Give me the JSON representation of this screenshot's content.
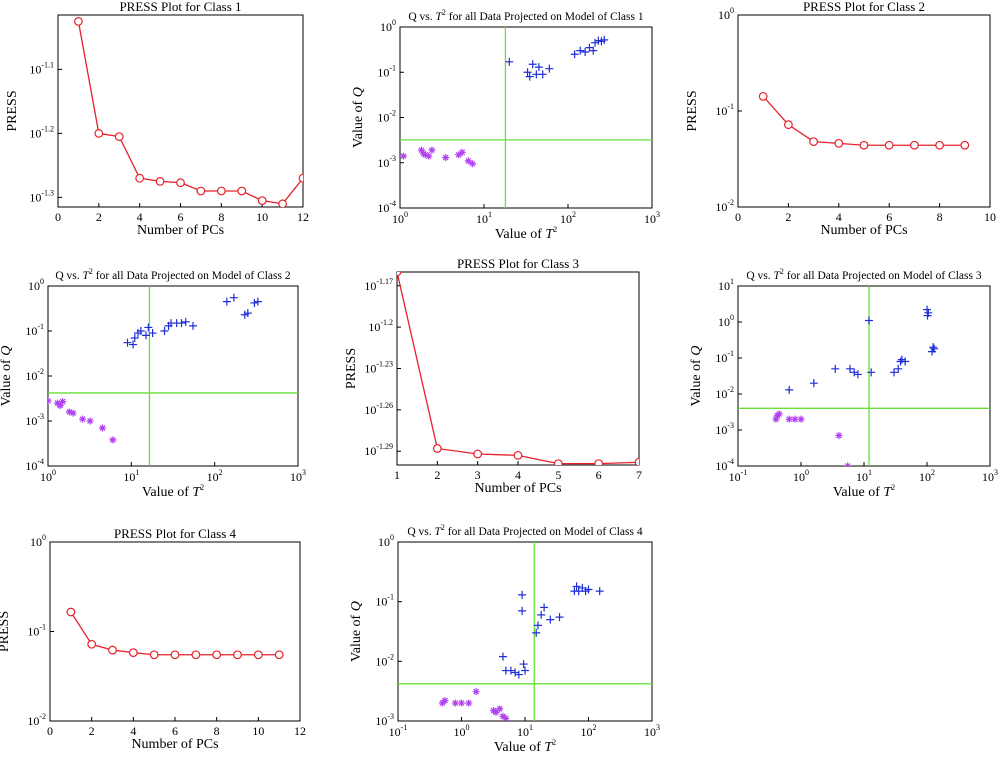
{
  "colors": {
    "press": "#e8202a",
    "class_in": "#b040f0",
    "class_out": "#1f2ed8",
    "limit": "#66e03a"
  },
  "chart_data": [
    {
      "type": "line",
      "title": "PRESS Plot for Class 1",
      "xlabel": "Number of PCs",
      "ylabel": "PRESS",
      "xlim": [
        0,
        12
      ],
      "ylim": [
        -1.315,
        -1.015
      ],
      "yscale": "log-exponent",
      "xticks": [
        "0",
        "2",
        "4",
        "6",
        "8",
        "10",
        "12"
      ],
      "yticks": [
        {
          "base": "10",
          "exp": "-1.1",
          "v": -1.1
        },
        {
          "base": "10",
          "exp": "-1.2",
          "v": -1.2
        },
        {
          "base": "10",
          "exp": "-1.3",
          "v": -1.3
        }
      ],
      "x": [
        1,
        2,
        3,
        4,
        5,
        6,
        7,
        8,
        9,
        10,
        11,
        12
      ],
      "values": [
        -1.025,
        -1.2,
        -1.205,
        -1.27,
        -1.275,
        -1.277,
        -1.29,
        -1.29,
        -1.29,
        -1.305,
        -1.31,
        -1.27
      ]
    },
    {
      "type": "scatter",
      "title": "Q vs. T for all Data Projected on Model of Class 1",
      "title_q": "Q vs.",
      "title_t": "T",
      "title_exp": "2",
      "title_rest": "for all Data Projected on Model of Class 1",
      "xlabel_prefix": "Value of ",
      "xlabel_var": "T",
      "xlabel_exp": "2",
      "ylabel_prefix": "Value of ",
      "ylabel_var": "Q",
      "xscale": "log",
      "yscale": "log",
      "xlim": [
        1,
        1000
      ],
      "ylim": [
        0.0001,
        1
      ],
      "xticks": [
        {
          "base": "10",
          "exp": "0",
          "v": 1
        },
        {
          "base": "10",
          "exp": "1",
          "v": 10
        },
        {
          "base": "10",
          "exp": "2",
          "v": 100
        },
        {
          "base": "10",
          "exp": "3",
          "v": 1000
        }
      ],
      "yticks": [
        {
          "base": "10",
          "exp": "-4",
          "v": 0.0001
        },
        {
          "base": "10",
          "exp": "-3",
          "v": 0.001
        },
        {
          "base": "10",
          "exp": "-2",
          "v": 0.01
        },
        {
          "base": "10",
          "exp": "-1",
          "v": 0.1
        },
        {
          "base": "10",
          "exp": "0",
          "v": 1
        }
      ],
      "t2_limit": 18,
      "q_limit": 0.0032,
      "series": [
        {
          "marker": "star",
          "points": [
            [
              1.1,
              0.0014
            ],
            [
              1.8,
              0.0019
            ],
            [
              1.9,
              0.0016
            ],
            [
              2.0,
              0.0015
            ],
            [
              2.2,
              0.0014
            ],
            [
              2.4,
              0.0019
            ],
            [
              3.5,
              0.0013
            ],
            [
              5.0,
              0.0015
            ],
            [
              5.5,
              0.0017
            ],
            [
              6.5,
              0.0011
            ],
            [
              7.3,
              0.00095
            ]
          ]
        },
        {
          "marker": "plus",
          "points": [
            [
              20,
              0.17
            ],
            [
              33,
              0.1
            ],
            [
              35,
              0.08
            ],
            [
              38,
              0.15
            ],
            [
              42,
              0.09
            ],
            [
              45,
              0.13
            ],
            [
              50,
              0.09
            ],
            [
              60,
              0.12
            ],
            [
              120,
              0.25
            ],
            [
              140,
              0.3
            ],
            [
              160,
              0.28
            ],
            [
              180,
              0.35
            ],
            [
              200,
              0.3
            ],
            [
              210,
              0.45
            ],
            [
              230,
              0.5
            ],
            [
              250,
              0.48
            ],
            [
              270,
              0.52
            ]
          ]
        }
      ]
    },
    {
      "type": "line",
      "title": "PRESS Plot for Class 2",
      "xlabel": "Number of PCs",
      "ylabel": "PRESS",
      "xlim": [
        0,
        10
      ],
      "ylim": [
        0.01,
        1
      ],
      "yscale": "log",
      "xticks": [
        "0",
        "2",
        "4",
        "6",
        "8",
        "10"
      ],
      "yticks": [
        {
          "base": "10",
          "exp": "-2",
          "v": 0.01
        },
        {
          "base": "10",
          "exp": "-1",
          "v": 0.1
        },
        {
          "base": "10",
          "exp": "0",
          "v": 1
        }
      ],
      "x": [
        1,
        2,
        3,
        4,
        5,
        6,
        7,
        8,
        9
      ],
      "values": [
        0.142,
        0.072,
        0.048,
        0.046,
        0.044,
        0.044,
        0.044,
        0.044,
        0.044
      ]
    },
    {
      "type": "scatter",
      "title_q": "Q vs.",
      "title_t": "T",
      "title_exp": "2",
      "title_rest": "for all Data Projected on Model of Class 2",
      "xlabel_prefix": "Value of ",
      "xlabel_var": "T",
      "xlabel_exp": "2",
      "ylabel_prefix": "Value of ",
      "ylabel_var": "Q",
      "xscale": "log",
      "yscale": "log",
      "xlim": [
        1,
        1000
      ],
      "ylim": [
        0.0001,
        1
      ],
      "xticks": [
        {
          "base": "10",
          "exp": "0",
          "v": 1
        },
        {
          "base": "10",
          "exp": "1",
          "v": 10
        },
        {
          "base": "10",
          "exp": "2",
          "v": 100
        },
        {
          "base": "10",
          "exp": "3",
          "v": 1000
        }
      ],
      "yticks": [
        {
          "base": "10",
          "exp": "-4",
          "v": 0.0001
        },
        {
          "base": "10",
          "exp": "-3",
          "v": 0.001
        },
        {
          "base": "10",
          "exp": "-2",
          "v": 0.01
        },
        {
          "base": "10",
          "exp": "-1",
          "v": 0.1
        },
        {
          "base": "10",
          "exp": "0",
          "v": 1
        }
      ],
      "t2_limit": 16.5,
      "q_limit": 0.0042,
      "series": [
        {
          "marker": "star",
          "points": [
            [
              1.0,
              0.0028
            ],
            [
              1.3,
              0.0025
            ],
            [
              1.4,
              0.0022
            ],
            [
              1.5,
              0.0027
            ],
            [
              1.8,
              0.0016
            ],
            [
              2.0,
              0.0015
            ],
            [
              2.6,
              0.0011
            ],
            [
              3.2,
              0.001
            ],
            [
              4.5,
              0.0007
            ],
            [
              6.0,
              0.00038
            ]
          ]
        },
        {
          "marker": "plus",
          "points": [
            [
              9,
              0.055
            ],
            [
              10.5,
              0.05
            ],
            [
              11,
              0.07
            ],
            [
              12,
              0.09
            ],
            [
              13,
              0.1
            ],
            [
              15,
              0.08
            ],
            [
              16,
              0.12
            ],
            [
              18,
              0.09
            ],
            [
              25,
              0.1
            ],
            [
              28,
              0.13
            ],
            [
              30,
              0.15
            ],
            [
              35,
              0.15
            ],
            [
              40,
              0.15
            ],
            [
              45,
              0.16
            ],
            [
              55,
              0.13
            ],
            [
              140,
              0.45
            ],
            [
              170,
              0.55
            ],
            [
              230,
              0.23
            ],
            [
              250,
              0.25
            ],
            [
              300,
              0.42
            ],
            [
              330,
              0.45
            ]
          ]
        }
      ]
    },
    {
      "type": "line",
      "title": "PRESS Plot for Class 3",
      "xlabel": "Number of PCs",
      "ylabel": "PRESS",
      "xlim": [
        1,
        7
      ],
      "ylim": [
        -1.3,
        -1.16
      ],
      "yscale": "log-exponent",
      "xticks": [
        "1",
        "2",
        "3",
        "4",
        "5",
        "6",
        "7"
      ],
      "yticks": [
        {
          "base": "10",
          "exp": "-1.17",
          "v": -1.17
        },
        {
          "base": "10",
          "exp": "-1.2",
          "v": -1.2
        },
        {
          "base": "10",
          "exp": "-1.23",
          "v": -1.23
        },
        {
          "base": "10",
          "exp": "-1.26",
          "v": -1.26
        },
        {
          "base": "10",
          "exp": "-1.29",
          "v": -1.29
        }
      ],
      "x": [
        1,
        2,
        3,
        4,
        5,
        6,
        7
      ],
      "values": [
        -1.16,
        -1.288,
        -1.292,
        -1.293,
        -1.299,
        -1.299,
        -1.298
      ]
    },
    {
      "type": "scatter",
      "title_q": "Q vs.",
      "title_t": "T",
      "title_exp": "2",
      "title_rest": "for all Data Projected on Model of Class 3",
      "xlabel_prefix": "Value of ",
      "xlabel_var": "T",
      "xlabel_exp": "2",
      "ylabel_prefix": "Value of ",
      "ylabel_var": "Q",
      "xscale": "log",
      "yscale": "log",
      "xlim": [
        0.1,
        1000
      ],
      "ylim": [
        0.0001,
        10
      ],
      "xticks": [
        {
          "base": "10",
          "exp": "-1",
          "v": 0.1
        },
        {
          "base": "10",
          "exp": "0",
          "v": 1
        },
        {
          "base": "10",
          "exp": "1",
          "v": 10
        },
        {
          "base": "10",
          "exp": "2",
          "v": 100
        },
        {
          "base": "10",
          "exp": "3",
          "v": 1000
        }
      ],
      "yticks": [
        {
          "base": "10",
          "exp": "-4",
          "v": 0.0001
        },
        {
          "base": "10",
          "exp": "-3",
          "v": 0.001
        },
        {
          "base": "10",
          "exp": "-2",
          "v": 0.01
        },
        {
          "base": "10",
          "exp": "-1",
          "v": 0.1
        },
        {
          "base": "10",
          "exp": "0",
          "v": 1
        },
        {
          "base": "10",
          "exp": "1",
          "v": 10
        }
      ],
      "t2_limit": 12,
      "q_limit": 0.004,
      "series": [
        {
          "marker": "star",
          "points": [
            [
              0.4,
              0.002
            ],
            [
              0.42,
              0.0025
            ],
            [
              0.45,
              0.0028
            ],
            [
              0.65,
              0.002
            ],
            [
              0.8,
              0.002
            ],
            [
              1.0,
              0.002
            ],
            [
              4.0,
              0.0007
            ],
            [
              5.5,
              0.0001
            ]
          ]
        },
        {
          "marker": "plus",
          "points": [
            [
              0.65,
              0.013
            ],
            [
              1.6,
              0.02
            ],
            [
              3.5,
              0.05
            ],
            [
              6,
              0.05
            ],
            [
              7,
              0.04
            ],
            [
              8,
              0.035
            ],
            [
              12,
              1.1
            ],
            [
              13,
              0.04
            ],
            [
              30,
              0.04
            ],
            [
              35,
              0.05
            ],
            [
              38,
              0.08
            ],
            [
              40,
              0.09
            ],
            [
              45,
              0.08
            ],
            [
              100,
              2.2
            ],
            [
              102,
              1.5
            ],
            [
              105,
              1.8
            ],
            [
              120,
              0.15
            ],
            [
              125,
              0.2
            ],
            [
              130,
              0.18
            ]
          ]
        }
      ]
    },
    {
      "type": "line",
      "title": "PRESS Plot for Class 4",
      "xlabel": "Number of PCs",
      "ylabel": "PRESS",
      "xlim": [
        0,
        12
      ],
      "ylim": [
        0.01,
        1
      ],
      "yscale": "log",
      "xticks": [
        "0",
        "2",
        "4",
        "6",
        "8",
        "10",
        "12"
      ],
      "yticks": [
        {
          "base": "10",
          "exp": "-2",
          "v": 0.01
        },
        {
          "base": "10",
          "exp": "-1",
          "v": 0.1
        },
        {
          "base": "10",
          "exp": "0",
          "v": 1
        }
      ],
      "x": [
        1,
        2,
        3,
        4,
        5,
        6,
        7,
        8,
        9,
        10,
        11
      ],
      "values": [
        0.165,
        0.072,
        0.062,
        0.058,
        0.055,
        0.055,
        0.055,
        0.055,
        0.055,
        0.055,
        0.055
      ]
    },
    {
      "type": "scatter",
      "title_q": "Q vs.",
      "title_t": "T",
      "title_exp": "2",
      "title_rest": "for all Data Projected on Model of Class 4",
      "xlabel_prefix": "Value of ",
      "xlabel_var": "T",
      "xlabel_exp": "2",
      "ylabel_prefix": "Value of ",
      "ylabel_var": "Q",
      "xscale": "log",
      "yscale": "log",
      "xlim": [
        0.1,
        1000
      ],
      "ylim": [
        0.001,
        1
      ],
      "xticks": [
        {
          "base": "10",
          "exp": "-1",
          "v": 0.1
        },
        {
          "base": "10",
          "exp": "0",
          "v": 1
        },
        {
          "base": "10",
          "exp": "1",
          "v": 10
        },
        {
          "base": "10",
          "exp": "2",
          "v": 100
        },
        {
          "base": "10",
          "exp": "3",
          "v": 1000
        }
      ],
      "yticks": [
        {
          "base": "10",
          "exp": "-3",
          "v": 0.001
        },
        {
          "base": "10",
          "exp": "-2",
          "v": 0.01
        },
        {
          "base": "10",
          "exp": "-1",
          "v": 0.1
        },
        {
          "base": "10",
          "exp": "0",
          "v": 1
        }
      ],
      "t2_limit": 14,
      "q_limit": 0.0042,
      "series": [
        {
          "marker": "star",
          "points": [
            [
              0.5,
              0.002
            ],
            [
              0.55,
              0.0022
            ],
            [
              0.8,
              0.002
            ],
            [
              1.0,
              0.002
            ],
            [
              1.3,
              0.002
            ],
            [
              1.7,
              0.0031
            ],
            [
              3.2,
              0.0015
            ],
            [
              3.5,
              0.0014
            ],
            [
              4.0,
              0.0016
            ],
            [
              4.5,
              0.0012
            ],
            [
              5.0,
              0.0011
            ]
          ]
        },
        {
          "marker": "plus",
          "points": [
            [
              4.5,
              0.012
            ],
            [
              5,
              0.007
            ],
            [
              6,
              0.007
            ],
            [
              7,
              0.0065
            ],
            [
              8,
              0.006
            ],
            [
              9,
              0.13
            ],
            [
              9,
              0.07
            ],
            [
              9.5,
              0.009
            ],
            [
              10,
              0.007
            ],
            [
              15,
              0.03
            ],
            [
              16,
              0.04
            ],
            [
              18,
              0.06
            ],
            [
              20,
              0.08
            ],
            [
              25,
              0.05
            ],
            [
              35,
              0.055
            ],
            [
              60,
              0.15
            ],
            [
              65,
              0.18
            ],
            [
              70,
              0.15
            ],
            [
              80,
              0.17
            ],
            [
              90,
              0.15
            ],
            [
              100,
              0.16
            ],
            [
              150,
              0.15
            ]
          ]
        }
      ]
    }
  ]
}
